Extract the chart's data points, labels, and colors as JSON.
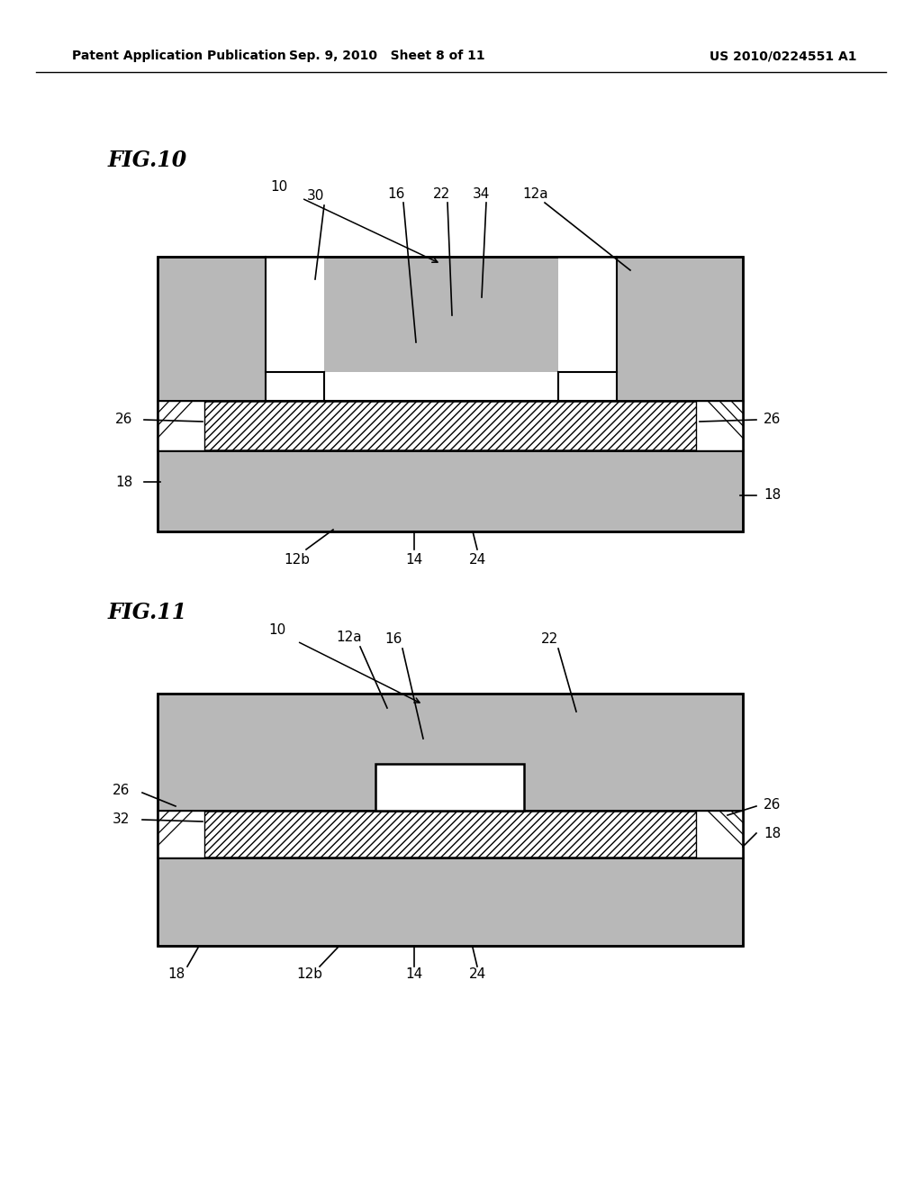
{
  "bg_color": "#ffffff",
  "header_left": "Patent Application Publication",
  "header_mid": "Sep. 9, 2010   Sheet 8 of 11",
  "header_right": "US 2010/0224551 A1",
  "fig10_label": "FIG.10",
  "fig11_label": "FIG.11",
  "gray_fill": "#b8b8b8",
  "white_fill": "#ffffff",
  "outline_color": "#000000",
  "label_fontsize": 11,
  "fig_label_fontsize": 17
}
